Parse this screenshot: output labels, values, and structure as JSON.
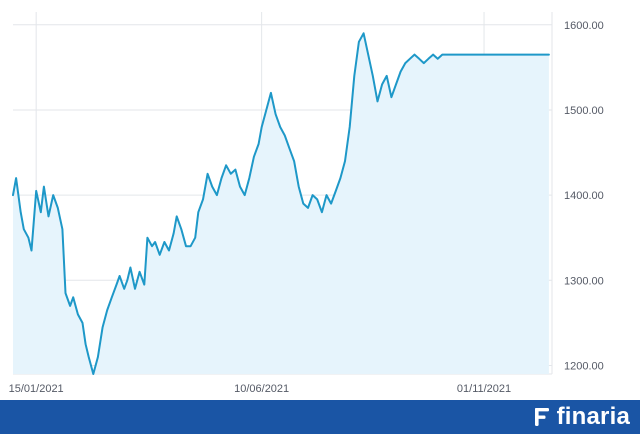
{
  "chart_data": {
    "type": "area",
    "title": "",
    "xlabel": "",
    "ylabel": "",
    "y_axis_position": "right",
    "ylim": [
      1190,
      1615
    ],
    "xlim": [
      "2020-12-31",
      "2021-12-15"
    ],
    "grid": true,
    "legend": "none",
    "colors": {
      "line": "#1e98c8",
      "fill": "#e6f4fc",
      "grid": "#e3e6ea",
      "tick_text": "#555a66"
    },
    "y_ticks": [
      {
        "value": 1200,
        "label": "1200.00"
      },
      {
        "value": 1300,
        "label": "1300.00"
      },
      {
        "value": 1400,
        "label": "1400.00"
      },
      {
        "value": 1500,
        "label": "1500.00"
      },
      {
        "value": 1600,
        "label": "1600.00"
      }
    ],
    "x_ticks": [
      {
        "value": "2021-01-15",
        "label": "15/01/2021"
      },
      {
        "value": "2021-06-10",
        "label": "10/06/2021"
      },
      {
        "value": "2021-11-01",
        "label": "01/11/2021"
      }
    ],
    "series": [
      {
        "x": [
          "2020-12-31",
          "2021-01-02",
          "2021-01-05",
          "2021-01-07",
          "2021-01-10",
          "2021-01-12",
          "2021-01-15",
          "2021-01-18",
          "2021-01-20",
          "2021-01-23",
          "2021-01-26",
          "2021-01-29",
          "2021-02-01",
          "2021-02-03",
          "2021-02-06",
          "2021-02-08",
          "2021-02-11",
          "2021-02-14",
          "2021-02-16",
          "2021-02-18",
          "2021-02-21",
          "2021-02-24",
          "2021-02-27",
          "2021-03-02",
          "2021-03-05",
          "2021-03-08",
          "2021-03-10",
          "2021-03-13",
          "2021-03-15",
          "2021-03-17",
          "2021-03-20",
          "2021-03-23",
          "2021-03-26",
          "2021-03-28",
          "2021-03-31",
          "2021-04-02",
          "2021-04-05",
          "2021-04-08",
          "2021-04-11",
          "2021-04-14",
          "2021-04-16",
          "2021-04-19",
          "2021-04-22",
          "2021-04-25",
          "2021-04-28",
          "2021-04-30",
          "2021-05-03",
          "2021-05-06",
          "2021-05-09",
          "2021-05-12",
          "2021-05-15",
          "2021-05-18",
          "2021-05-21",
          "2021-05-24",
          "2021-05-27",
          "2021-05-30",
          "2021-06-02",
          "2021-06-05",
          "2021-06-08",
          "2021-06-10",
          "2021-06-13",
          "2021-06-16",
          "2021-06-19",
          "2021-06-22",
          "2021-06-25",
          "2021-06-28",
          "2021-07-01",
          "2021-07-04",
          "2021-07-07",
          "2021-07-10",
          "2021-07-13",
          "2021-07-16",
          "2021-07-19",
          "2021-07-22",
          "2021-07-25",
          "2021-07-28",
          "2021-07-31",
          "2021-08-03",
          "2021-08-06",
          "2021-08-09",
          "2021-08-12",
          "2021-08-15",
          "2021-08-18",
          "2021-08-21",
          "2021-08-24",
          "2021-08-27",
          "2021-08-30",
          "2021-09-02",
          "2021-09-05",
          "2021-09-08",
          "2021-09-11",
          "2021-09-14",
          "2021-09-17",
          "2021-09-20",
          "2021-09-23",
          "2021-09-26",
          "2021-09-29",
          "2021-10-02",
          "2021-10-05",
          "2021-10-08",
          "2021-10-11",
          "2021-10-14",
          "2021-10-17",
          "2021-10-20",
          "2021-10-23",
          "2021-10-26",
          "2021-10-29",
          "2021-11-01",
          "2021-11-04",
          "2021-11-07",
          "2021-11-10",
          "2021-11-13",
          "2021-11-16",
          "2021-11-19",
          "2021-11-22",
          "2021-11-25",
          "2021-11-28",
          "2021-12-01",
          "2021-12-04",
          "2021-12-07",
          "2021-12-10",
          "2021-12-13"
        ],
        "values": [
          1400,
          1420,
          1380,
          1360,
          1350,
          1335,
          1405,
          1380,
          1410,
          1375,
          1400,
          1385,
          1360,
          1285,
          1270,
          1280,
          1260,
          1250,
          1225,
          1210,
          1190,
          1210,
          1245,
          1265,
          1280,
          1295,
          1305,
          1290,
          1300,
          1315,
          1290,
          1310,
          1295,
          1350,
          1340,
          1345,
          1330,
          1345,
          1335,
          1355,
          1375,
          1360,
          1340,
          1340,
          1350,
          1380,
          1395,
          1425,
          1410,
          1400,
          1420,
          1435,
          1425,
          1430,
          1410,
          1400,
          1420,
          1445,
          1460,
          1480,
          1500,
          1520,
          1495,
          1480,
          1470,
          1455,
          1440,
          1410,
          1390,
          1385,
          1400,
          1395,
          1380,
          1400,
          1390,
          1405,
          1420,
          1440,
          1480,
          1540,
          1580,
          1590,
          1565,
          1540,
          1510,
          1530,
          1540,
          1515,
          1530,
          1545,
          1555,
          1560,
          1565,
          1560,
          1555,
          1560,
          1565,
          1560,
          1565,
          1565,
          1565,
          1565,
          1565,
          1565,
          1565,
          1565,
          1565,
          1565,
          1565,
          1565,
          1565,
          1565,
          1565,
          1565,
          1565,
          1565,
          1565,
          1565,
          1565,
          1565,
          1565,
          1565
        ]
      }
    ]
  },
  "brand": {
    "name": "finaria",
    "mark_icon": "finaria-logo-icon"
  }
}
